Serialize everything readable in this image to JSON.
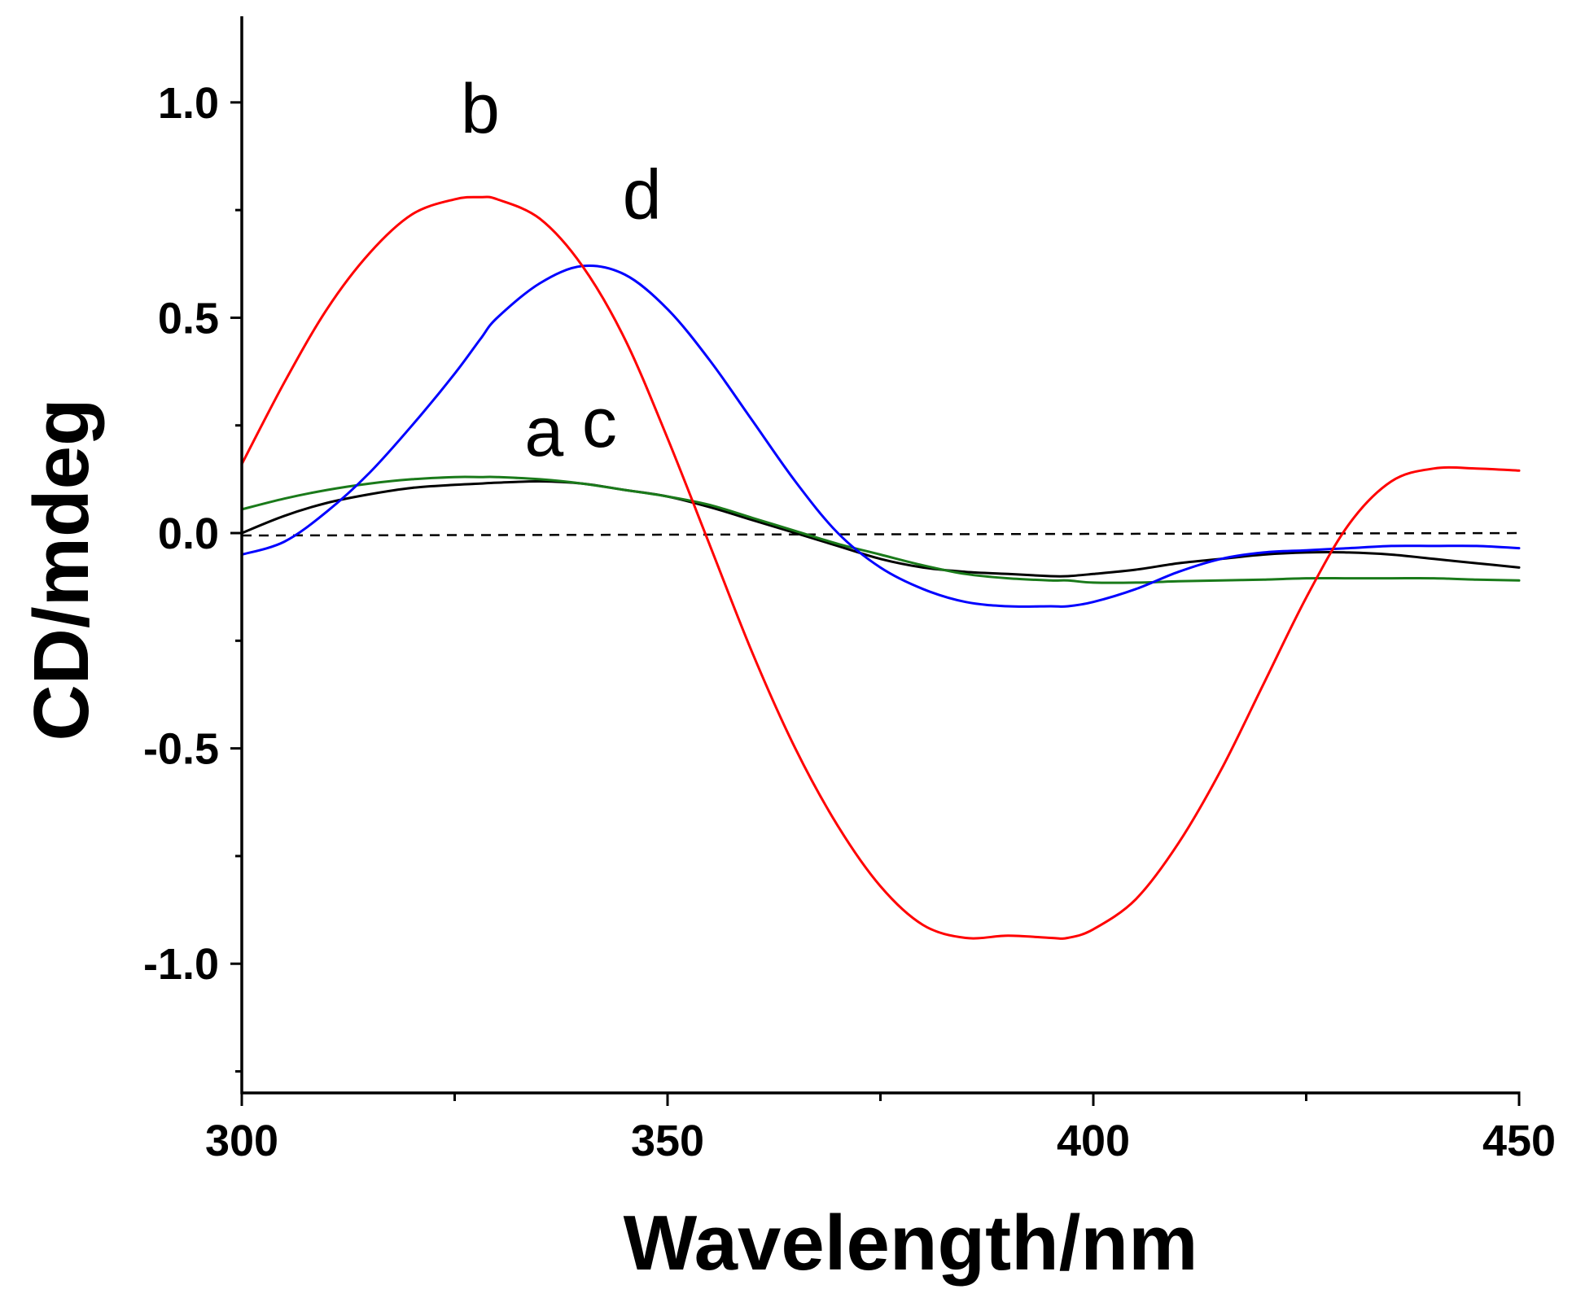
{
  "chart_data": {
    "type": "line",
    "title": "",
    "xlabel": "Wavelength/nm",
    "ylabel": "CD/mdeg",
    "xlim": [
      300,
      450
    ],
    "ylim": [
      -1.3,
      1.2
    ],
    "xticks": [
      300,
      350,
      400,
      450
    ],
    "xtick_labels": [
      "300",
      "350",
      "400",
      "450"
    ],
    "yticks": [
      -1.0,
      -0.5,
      0.0,
      0.5,
      1.0
    ],
    "ytick_labels": [
      "-1.0",
      "-0.5",
      "0.0",
      "0.5",
      "1.0"
    ],
    "grid": false,
    "x": [
      300,
      305,
      310,
      315,
      320,
      325,
      328,
      330,
      335,
      340,
      345,
      350,
      355,
      360,
      365,
      370,
      375,
      380,
      385,
      390,
      395,
      397,
      400,
      405,
      410,
      415,
      420,
      425,
      430,
      435,
      440,
      445,
      450
    ],
    "series": [
      {
        "name": "a",
        "color": "#000000",
        "values": [
          0.0,
          0.04,
          0.07,
          0.09,
          0.105,
          0.112,
          0.115,
          0.117,
          0.12,
          0.115,
          0.1,
          0.085,
          0.06,
          0.03,
          0.0,
          -0.03,
          -0.06,
          -0.08,
          -0.09,
          -0.095,
          -0.1,
          -0.1,
          -0.095,
          -0.085,
          -0.07,
          -0.06,
          -0.05,
          -0.045,
          -0.045,
          -0.05,
          -0.06,
          -0.07,
          -0.08
        ]
      },
      {
        "name": "b",
        "color": "#ff0000",
        "values": [
          0.16,
          0.35,
          0.52,
          0.65,
          0.74,
          0.775,
          0.78,
          0.775,
          0.73,
          0.62,
          0.45,
          0.22,
          -0.03,
          -0.28,
          -0.5,
          -0.68,
          -0.82,
          -0.91,
          -0.94,
          -0.935,
          -0.94,
          -0.94,
          -0.92,
          -0.85,
          -0.72,
          -0.55,
          -0.35,
          -0.15,
          0.02,
          0.12,
          0.15,
          0.15,
          0.145
        ]
      },
      {
        "name": "c",
        "color": "#1a7a1a",
        "values": [
          0.055,
          0.08,
          0.1,
          0.115,
          0.125,
          0.13,
          0.13,
          0.13,
          0.125,
          0.115,
          0.1,
          0.085,
          0.065,
          0.035,
          0.005,
          -0.025,
          -0.05,
          -0.075,
          -0.095,
          -0.105,
          -0.11,
          -0.11,
          -0.115,
          -0.115,
          -0.112,
          -0.11,
          -0.108,
          -0.105,
          -0.105,
          -0.105,
          -0.105,
          -0.108,
          -0.11
        ]
      },
      {
        "name": "d",
        "color": "#0000ff",
        "values": [
          -0.05,
          -0.02,
          0.05,
          0.14,
          0.25,
          0.37,
          0.45,
          0.5,
          0.58,
          0.62,
          0.6,
          0.52,
          0.4,
          0.26,
          0.12,
          0.0,
          -0.08,
          -0.13,
          -0.16,
          -0.17,
          -0.17,
          -0.17,
          -0.16,
          -0.13,
          -0.09,
          -0.06,
          -0.045,
          -0.04,
          -0.035,
          -0.03,
          -0.03,
          -0.03,
          -0.035
        ]
      }
    ],
    "reference_line": {
      "y": 0,
      "style": "dashed",
      "color": "#000000"
    },
    "annotations": [
      {
        "text": "b",
        "x": 328,
        "y": 0.93
      },
      {
        "text": "d",
        "x": 347,
        "y": 0.73
      },
      {
        "text": "a",
        "x": 335.5,
        "y": 0.18
      },
      {
        "text": "c",
        "x": 342,
        "y": 0.2
      }
    ]
  }
}
